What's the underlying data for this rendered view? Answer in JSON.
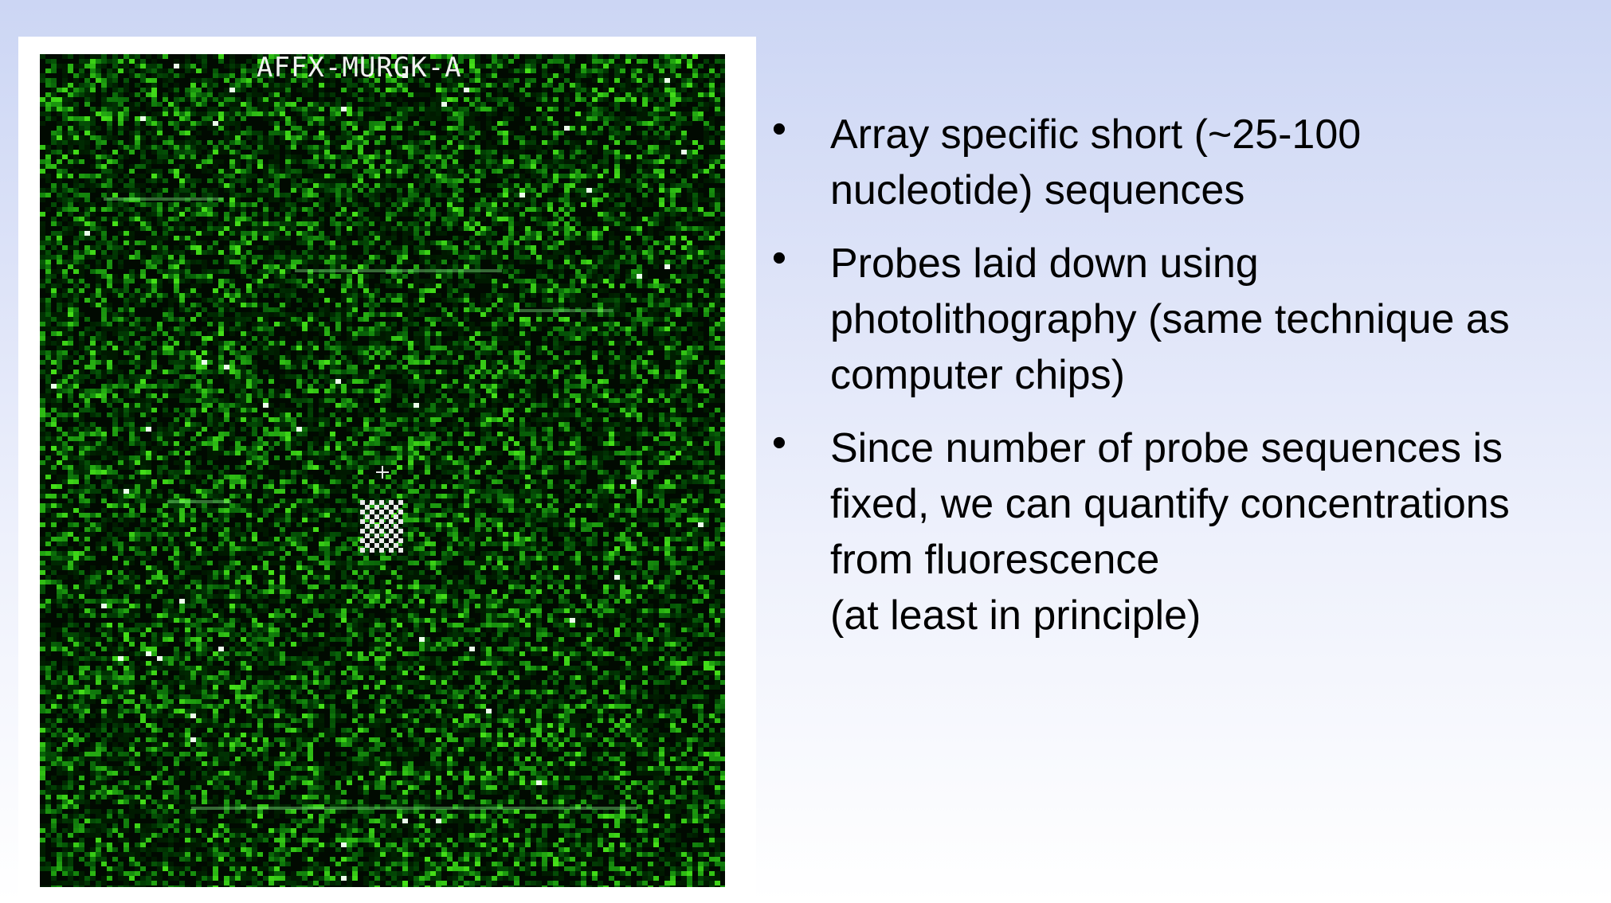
{
  "microarray_image": {
    "chip_label": "AFFX-MURGK-A",
    "colors": {
      "background": "#010a01",
      "probe_bright": "#58e058",
      "probe_dim": "#0d4a10"
    }
  },
  "bullets": [
    {
      "lines": [
        "Array specific short (~25-100",
        "nucleotide) sequences"
      ]
    },
    {
      "lines": [
        "Probes laid down using",
        "photolithography (same technique as",
        "computer chips)"
      ]
    },
    {
      "lines": [
        "Since number of probe sequences is",
        "fixed, we can quantify concentrations",
        "from fluorescence",
        "(at least in principle)"
      ]
    }
  ]
}
